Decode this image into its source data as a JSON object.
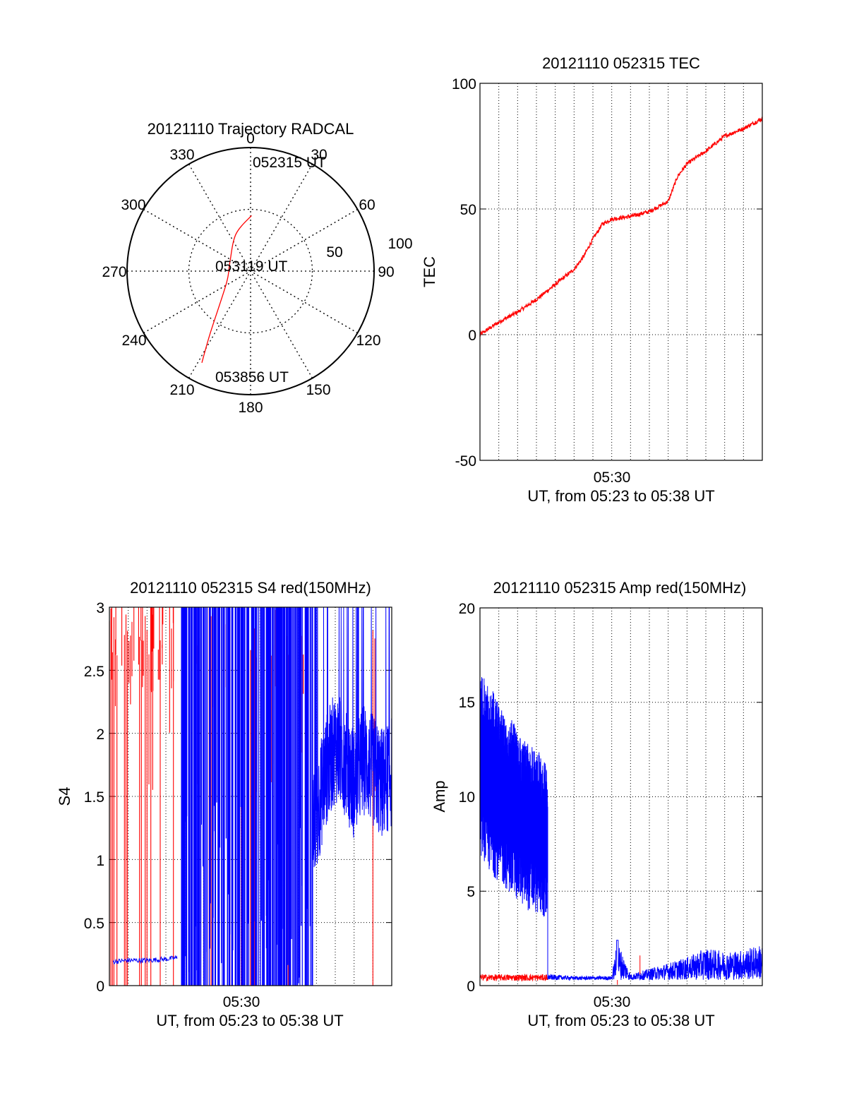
{
  "chart_data": [
    {
      "type": "polar",
      "title": "20121110 Trajectory RADCAL",
      "angular_ticks": [
        "0",
        "30",
        "60",
        "90",
        "120",
        "150",
        "180",
        "210",
        "240",
        "270",
        "300",
        "330"
      ],
      "radial_ticks": [
        "50",
        "100"
      ],
      "r_max": 100,
      "grid": true,
      "series": [
        {
          "color": "#ff0000",
          "points": [
            {
              "az": 1,
              "zen": 45
            },
            {
              "az": 338,
              "zen": 32
            },
            {
              "az": 290,
              "zen": 18
            },
            {
              "az": 243,
              "zen": 22
            },
            {
              "az": 213,
              "zen": 60
            },
            {
              "az": 208,
              "zen": 84
            }
          ]
        }
      ],
      "annotations": [
        "052315 UT",
        "053119 UT",
        "053856 UT"
      ]
    },
    {
      "type": "line",
      "title": "20121110 052315 TEC",
      "ylabel": "TEC",
      "xlabel": "UT, from 05:23 to 05:38 UT",
      "x_tick_labels": [
        "05:30"
      ],
      "x_range": [
        "05:23",
        "05:38"
      ],
      "ylim": [
        -50,
        100
      ],
      "y_ticks": [
        "-50",
        "0",
        "50",
        "100"
      ],
      "grid": true,
      "series": [
        {
          "color": "#ff0000",
          "x": [
            0,
            1,
            2,
            3,
            4,
            5,
            5.5,
            6,
            6.5,
            7,
            8,
            9,
            10,
            10.5,
            11,
            12,
            13,
            14,
            15
          ],
          "y": [
            0,
            5,
            9,
            14,
            20,
            26,
            31,
            38,
            44,
            46,
            47,
            49,
            53,
            63,
            68,
            73,
            79,
            82,
            86
          ]
        }
      ]
    },
    {
      "type": "line",
      "title": "20121110 052315 S4 red(150MHz)",
      "ylabel": "S4",
      "xlabel": "UT, from 05:23 to 05:38 UT",
      "x_tick_labels": [
        "05:30"
      ],
      "x_range": [
        "05:23",
        "05:38"
      ],
      "ylim": [
        0,
        3
      ],
      "y_ticks": [
        "0",
        "0.5",
        "1",
        "1.5",
        "2",
        "2.5",
        "3"
      ],
      "grid": true,
      "series": [
        {
          "color": "#ff0000",
          "x_spans": [
            [
              0,
              0.4
            ],
            [
              0.8,
              1.2
            ],
            [
              1.6,
              1.9
            ],
            [
              2.0,
              2.3
            ],
            [
              2.6,
              2.8
            ],
            [
              3.2,
              3.4
            ],
            [
              4.6,
              4.8
            ],
            [
              5.3,
              5.5
            ],
            [
              6.2,
              6.4
            ],
            [
              6.9,
              7.0
            ],
            [
              7.5,
              7.8
            ],
            [
              8.6,
              8.8
            ],
            [
              9.3,
              9.5
            ],
            [
              10.2,
              10.3
            ],
            [
              14.0,
              14.1
            ]
          ],
          "y_baseline": 2.7,
          "note_values": [
            2.9,
            1.75,
            0.5,
            0
          ]
        },
        {
          "color": "#0000ff",
          "x": [
            0.2,
            1.0,
            2.0,
            3.0,
            3.6
          ],
          "y": [
            0.19,
            0.2,
            0.2,
            0.21,
            0.22
          ],
          "dense_x_range": [
            3.8,
            10.8
          ],
          "dense_y_range": [
            0,
            3
          ],
          "tail_x": [
            10.8,
            11.5,
            12.0,
            12.5,
            13.0,
            13.5,
            14.0,
            14.5,
            15.0
          ],
          "tail_y": [
            1.2,
            1.7,
            1.9,
            1.8,
            1.6,
            1.8,
            1.7,
            1.6,
            1.7
          ]
        }
      ]
    },
    {
      "type": "line",
      "title": "20121110 052315 Amp red(150MHz)",
      "ylabel": "Amp",
      "xlabel": "UT, from 05:23 to 05:38 UT",
      "x_tick_labels": [
        "05:30"
      ],
      "x_range": [
        "05:23",
        "05:38"
      ],
      "ylim": [
        0,
        20
      ],
      "y_ticks": [
        "0",
        "5",
        "10",
        "15",
        "20"
      ],
      "grid": true,
      "series": [
        {
          "color": "#0000ff",
          "envelope_x": [
            0,
            0.5,
            1,
            1.5,
            2,
            2.5,
            3,
            3.5
          ],
          "envelope_hi": [
            16.5,
            16,
            15,
            14.5,
            13.5,
            13,
            12.5,
            12
          ],
          "envelope_lo": [
            7,
            6,
            5.5,
            5,
            4.5,
            4,
            3.8,
            3.5
          ],
          "drop_x": 3.6,
          "tail_x": [
            3.6,
            5,
            7,
            7.3,
            8,
            9,
            10,
            11,
            12,
            13,
            14,
            15
          ],
          "tail_y": [
            0.6,
            0.5,
            0.5,
            2.4,
            0.6,
            0.9,
            1.2,
            1.5,
            2.0,
            1.8,
            1.9,
            2.2
          ]
        },
        {
          "color": "#ff0000",
          "x": [
            0,
            3.6,
            7.3,
            8.5
          ],
          "y": [
            0.4,
            0.4,
            0.2,
            1.6
          ]
        }
      ]
    }
  ]
}
